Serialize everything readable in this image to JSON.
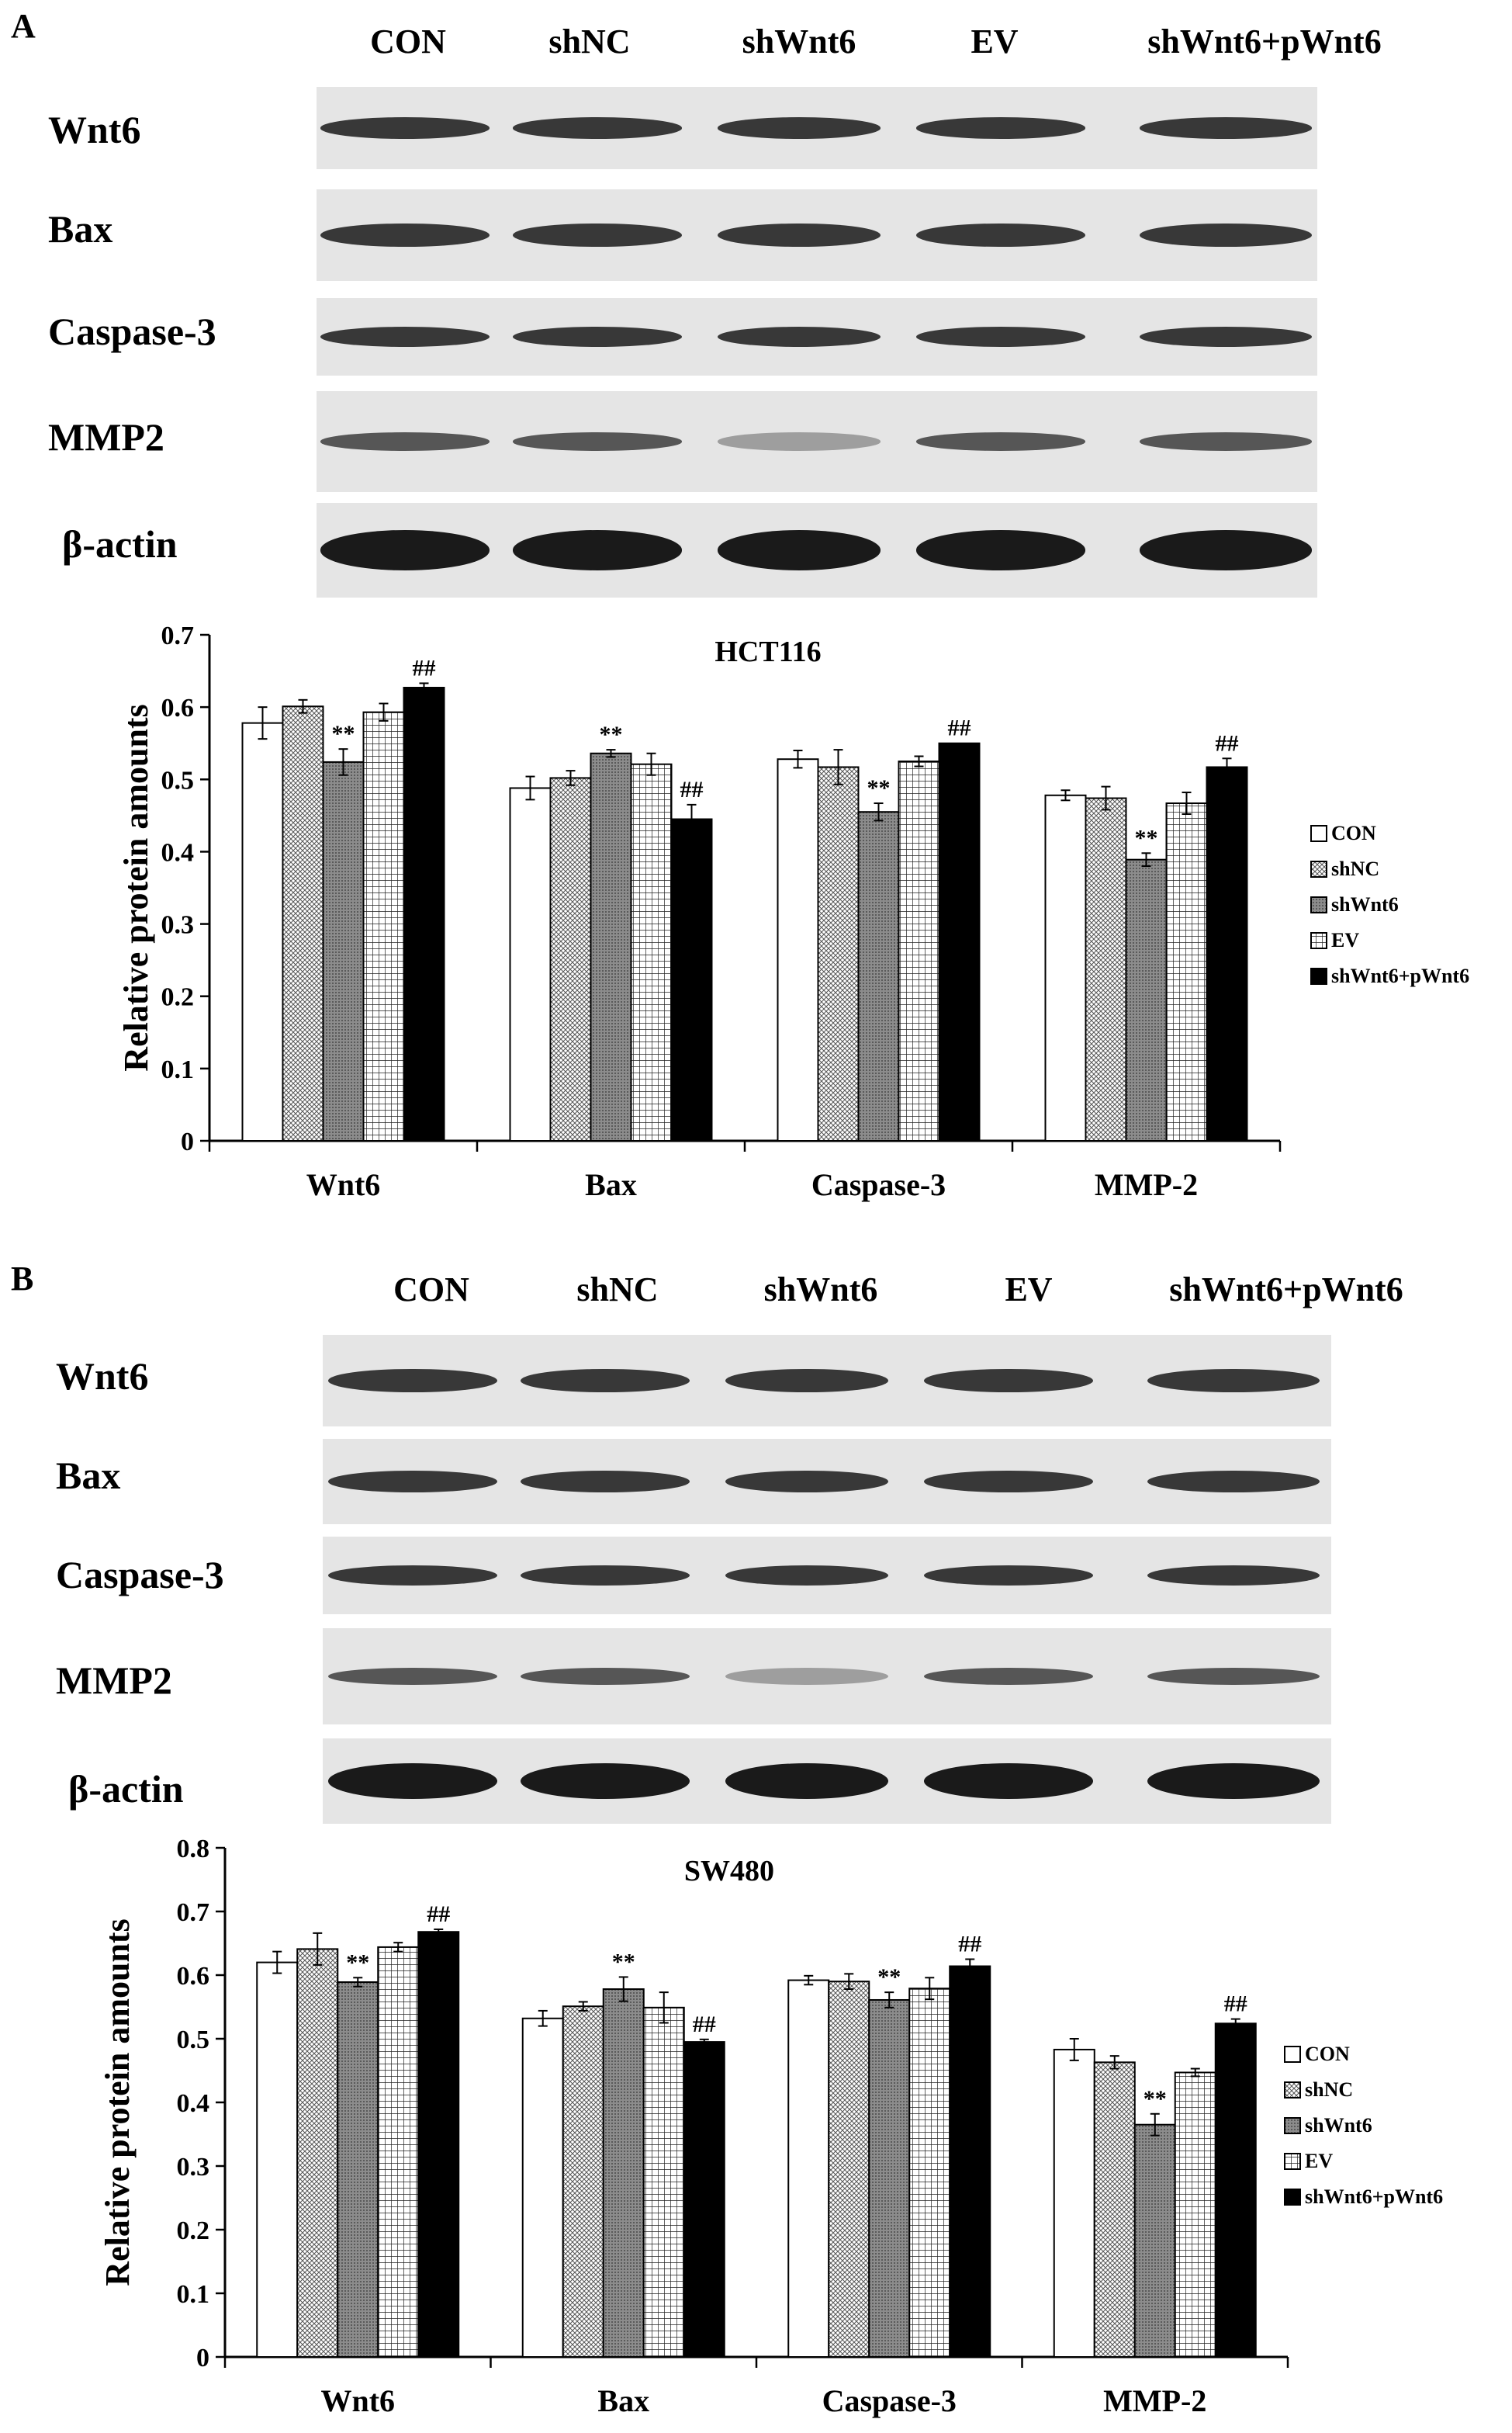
{
  "panels": [
    {
      "letter": "A",
      "lanes": [
        "CON",
        "shNC",
        "shWnt6",
        "EV",
        "shWnt6+pWnt6"
      ],
      "proteins": [
        "Wnt6",
        "Bax",
        "Caspase-3",
        "MMP2",
        "β-actin"
      ]
    },
    {
      "letter": "B",
      "lanes": [
        "CON",
        "shNC",
        "shWnt6",
        "EV",
        "shWnt6+pWnt6"
      ],
      "proteins": [
        "Wnt6",
        "Bax",
        "Caspase-3",
        "MMP2",
        "β-actin"
      ]
    }
  ],
  "chart_data": [
    {
      "type": "bar",
      "title": "HCT116",
      "ylabel": "Relative protein amounts",
      "xlabel": "",
      "categories": [
        "Wnt6",
        "Bax",
        "Caspase-3",
        "MMP-2"
      ],
      "ylim": [
        0,
        0.7
      ],
      "yticks": [
        "0",
        "0.1",
        "0.2",
        "0.3",
        "0.4",
        "0.5",
        "0.6",
        "0.7"
      ],
      "legend_position": "right",
      "series": [
        {
          "name": "CON",
          "values": [
            0.578,
            0.488,
            0.528,
            0.478
          ],
          "errors": [
            0.022,
            0.016,
            0.012,
            0.007
          ]
        },
        {
          "name": "shNC",
          "values": [
            0.601,
            0.502,
            0.517,
            0.474
          ],
          "errors": [
            0.009,
            0.01,
            0.024,
            0.016
          ]
        },
        {
          "name": "shWnt6",
          "values": [
            0.524,
            0.536,
            0.455,
            0.389
          ],
          "errors": [
            0.018,
            0.005,
            0.012,
            0.009
          ]
        },
        {
          "name": "EV",
          "values": [
            0.593,
            0.521,
            0.525,
            0.467
          ],
          "errors": [
            0.012,
            0.015,
            0.007,
            0.015
          ]
        },
        {
          "name": "shWnt6+pWnt6",
          "values": [
            0.627,
            0.445,
            0.55,
            0.517
          ],
          "errors": [
            0.006,
            0.02,
            0.0,
            0.012
          ]
        }
      ],
      "annotations": [
        {
          "text": "**",
          "category": "Wnt6",
          "series": "shWnt6"
        },
        {
          "text": "##",
          "category": "Wnt6",
          "series": "shWnt6+pWnt6"
        },
        {
          "text": "**",
          "category": "Bax",
          "series": "shWnt6"
        },
        {
          "text": "##",
          "category": "Bax",
          "series": "shWnt6+pWnt6"
        },
        {
          "text": "**",
          "category": "Caspase-3",
          "series": "shWnt6"
        },
        {
          "text": "##",
          "category": "Caspase-3",
          "series": "shWnt6+pWnt6"
        },
        {
          "text": "**",
          "category": "MMP-2",
          "series": "shWnt6"
        },
        {
          "text": "##",
          "category": "MMP-2",
          "series": "shWnt6+pWnt6"
        }
      ]
    },
    {
      "type": "bar",
      "title": "SW480",
      "ylabel": "Relative protein amounts",
      "xlabel": "",
      "categories": [
        "Wnt6",
        "Bax",
        "Caspase-3",
        "MMP-2"
      ],
      "ylim": [
        0,
        0.8
      ],
      "yticks": [
        "0",
        "0.1",
        "0.2",
        "0.3",
        "0.4",
        "0.5",
        "0.6",
        "0.7",
        "0.8"
      ],
      "legend_position": "right",
      "series": [
        {
          "name": "CON",
          "values": [
            0.62,
            0.532,
            0.592,
            0.483
          ],
          "errors": [
            0.017,
            0.012,
            0.007,
            0.017
          ]
        },
        {
          "name": "shNC",
          "values": [
            0.641,
            0.551,
            0.59,
            0.463
          ],
          "errors": [
            0.025,
            0.007,
            0.012,
            0.01
          ]
        },
        {
          "name": "shWnt6",
          "values": [
            0.589,
            0.578,
            0.561,
            0.365
          ],
          "errors": [
            0.007,
            0.019,
            0.012,
            0.017
          ]
        },
        {
          "name": "EV",
          "values": [
            0.644,
            0.549,
            0.579,
            0.447
          ],
          "errors": [
            0.007,
            0.024,
            0.017,
            0.006
          ]
        },
        {
          "name": "shWnt6+pWnt6",
          "values": [
            0.668,
            0.495,
            0.614,
            0.524
          ],
          "errors": [
            0.004,
            0.004,
            0.011,
            0.007
          ]
        }
      ],
      "annotations": [
        {
          "text": "**",
          "category": "Wnt6",
          "series": "shWnt6"
        },
        {
          "text": "##",
          "category": "Wnt6",
          "series": "shWnt6+pWnt6"
        },
        {
          "text": "**",
          "category": "Bax",
          "series": "shWnt6"
        },
        {
          "text": "##",
          "category": "Bax",
          "series": "shWnt6+pWnt6"
        },
        {
          "text": "**",
          "category": "Caspase-3",
          "series": "shWnt6"
        },
        {
          "text": "##",
          "category": "Caspase-3",
          "series": "shWnt6+pWnt6"
        },
        {
          "text": "**",
          "category": "MMP-2",
          "series": "shWnt6"
        },
        {
          "text": "##",
          "category": "MMP-2",
          "series": "shWnt6+pWnt6"
        }
      ]
    }
  ]
}
